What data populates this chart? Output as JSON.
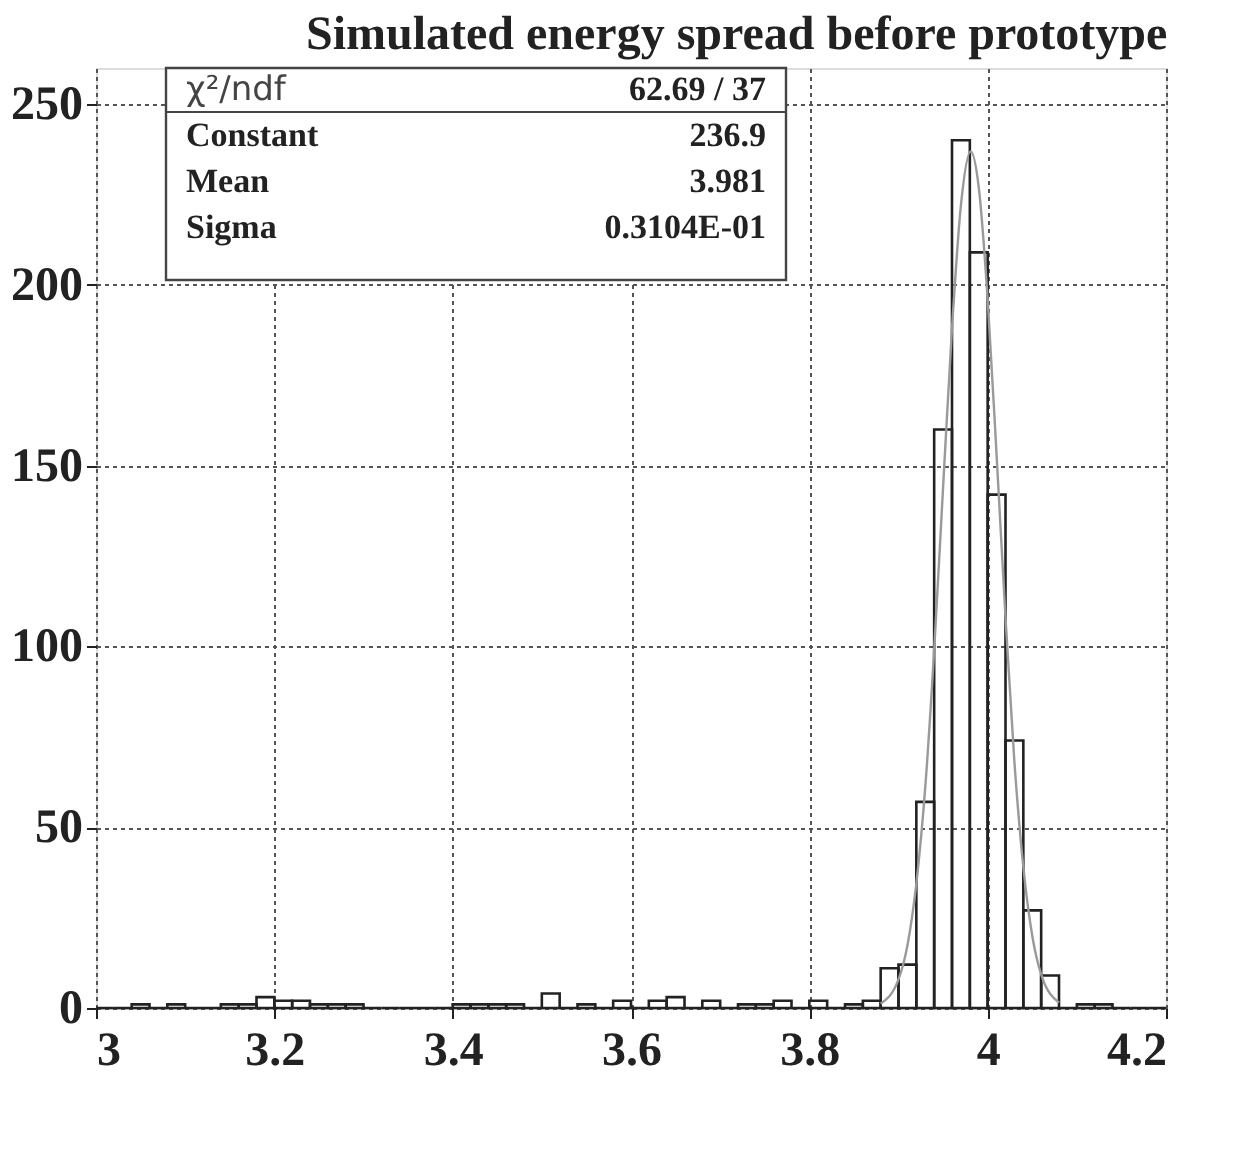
{
  "chart_data": {
    "type": "histogram",
    "title": "Simulated energy spread before prototype",
    "bins": [
      3.0,
      3.02,
      3.04,
      3.06,
      3.08,
      3.1,
      3.12,
      3.14,
      3.16,
      3.18,
      3.2,
      3.22,
      3.24,
      3.26,
      3.28,
      3.3,
      3.32,
      3.34,
      3.36,
      3.38,
      3.4,
      3.42,
      3.44,
      3.46,
      3.48,
      3.5,
      3.52,
      3.54,
      3.56,
      3.58,
      3.6,
      3.62,
      3.64,
      3.66,
      3.68,
      3.7,
      3.72,
      3.74,
      3.76,
      3.78,
      3.8,
      3.82,
      3.84,
      3.86,
      3.88,
      3.9,
      3.92,
      3.94,
      3.96,
      3.98,
      4.0,
      4.02,
      4.04,
      4.06,
      4.08,
      4.1,
      4.12,
      4.14,
      4.16,
      4.18,
      4.2
    ],
    "values": [
      0,
      0,
      1,
      0,
      1,
      0,
      0,
      1,
      1,
      3,
      2,
      2,
      1,
      1,
      1,
      0,
      0,
      0,
      0,
      0,
      1,
      1,
      1,
      1,
      0,
      4,
      0,
      1,
      0,
      2,
      0,
      2,
      3,
      0,
      2,
      0,
      1,
      1,
      2,
      0,
      2,
      0,
      1,
      2,
      11,
      12,
      57,
      160,
      240,
      209,
      142,
      74,
      27,
      9,
      0,
      1,
      1,
      0,
      0,
      0
    ],
    "color": "#222222",
    "series": [
      {
        "type": "line",
        "color": "#9a9a9a",
        "x": [
          3.88,
          3.9,
          3.91,
          3.92,
          3.93,
          3.94,
          3.95,
          3.96,
          3.97,
          3.981,
          3.99,
          4.0,
          4.01,
          4.02,
          4.03,
          4.04,
          4.05,
          4.06,
          4.08
        ],
        "values": [
          1.2,
          7.9,
          17.3,
          34.4,
          61,
          99,
          144,
          188,
          222,
          236.9,
          227,
          196,
          153,
          108,
          68,
          39,
          20,
          9.3,
          1.5
        ]
      }
    ],
    "annotations": [
      "χ²/ndf",
      "62.69  /  37",
      "Constant",
      "236.9",
      "Mean",
      "3.981",
      "Sigma",
      "0.3104E-01"
    ],
    "xlim": [
      3.0,
      4.2
    ],
    "xticks": [
      3,
      3.2,
      3.4,
      3.6,
      3.8,
      4,
      4.2
    ],
    "ylim": [
      0,
      260
    ],
    "yticks": [
      0,
      50,
      100,
      150,
      200,
      250
    ],
    "grid": true
  }
}
